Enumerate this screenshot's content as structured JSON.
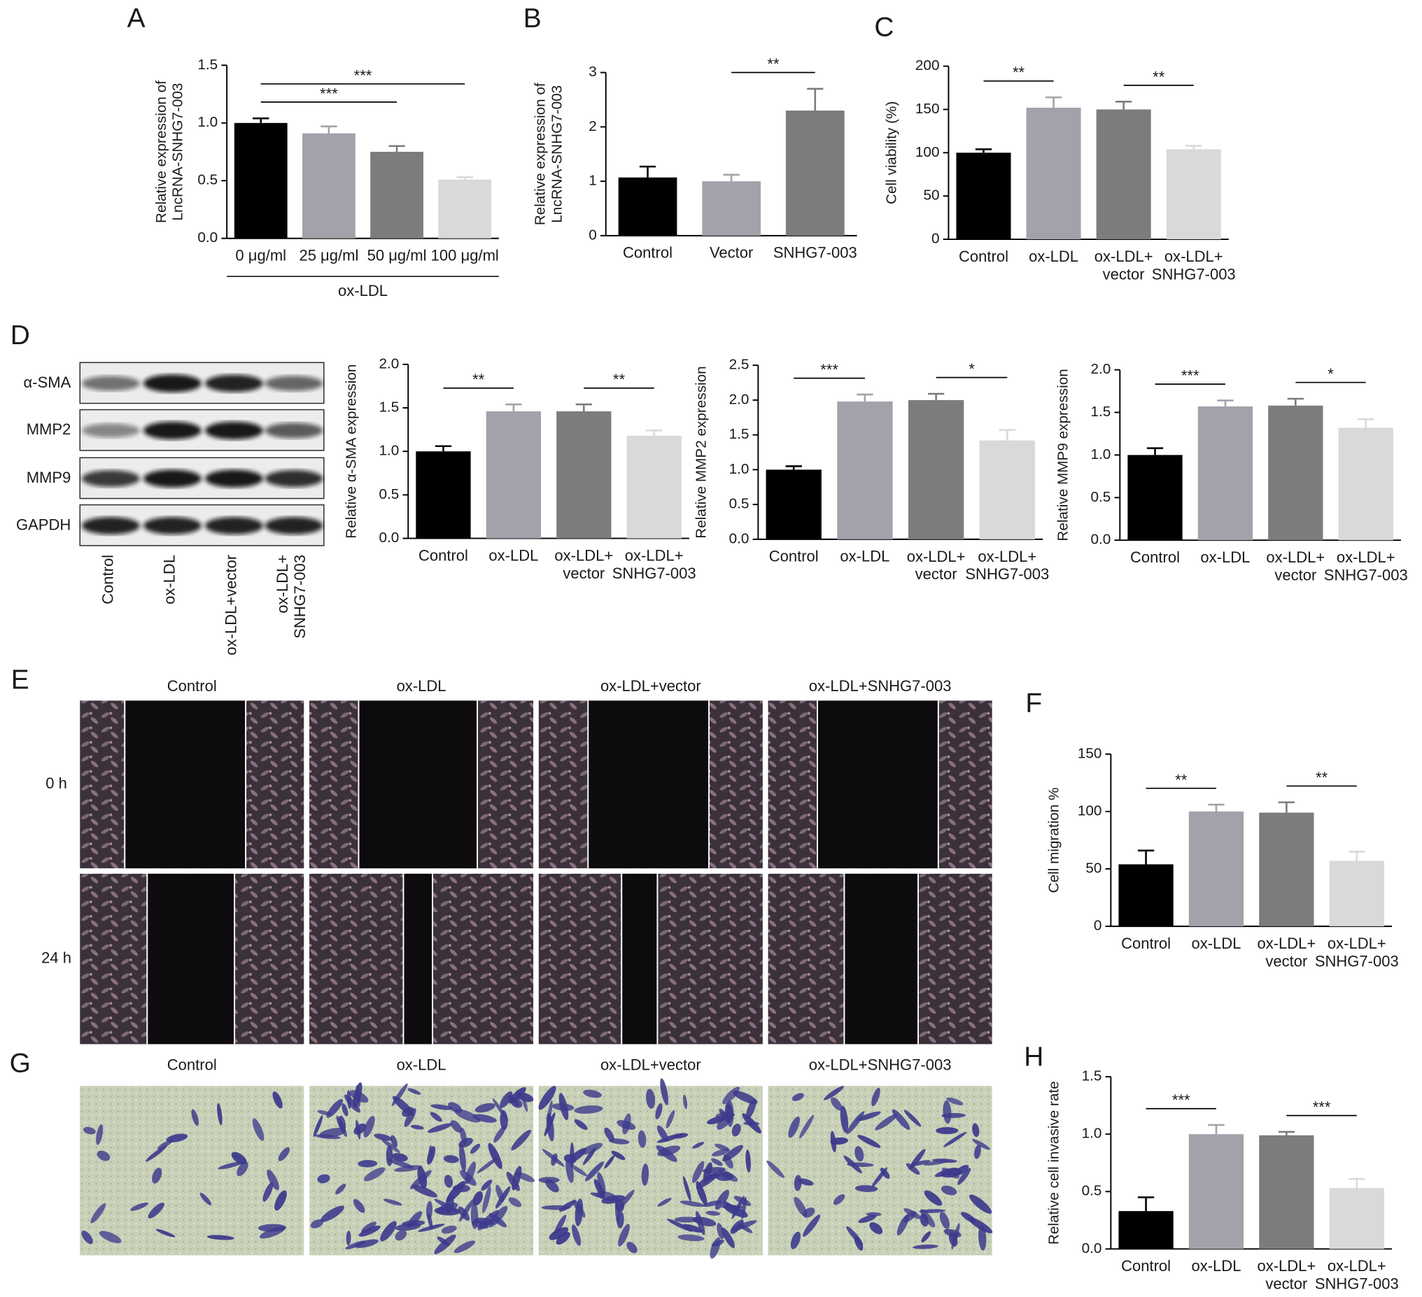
{
  "chart_data": [
    {
      "type": "bar",
      "panel": "A",
      "ylabel": "Relative expression of\nLncRNA-SNHG7-003",
      "categories": [
        "0 μg/ml",
        "25 μg/ml",
        "50 μg/ml",
        "100 μg/ml"
      ],
      "group_label": "ox-LDL",
      "values": [
        1.0,
        0.91,
        0.75,
        0.51
      ],
      "errors": [
        0.04,
        0.06,
        0.05,
        0.02
      ],
      "colors": [
        "#000000",
        "#a2a2ab",
        "#7c7c7c",
        "#d9d9d9"
      ],
      "ylim": [
        0,
        1.5
      ],
      "yticks": [
        {
          "value": 0,
          "label": "0.0"
        },
        {
          "value": 0.5,
          "label": "0.5"
        },
        {
          "value": 1,
          "label": "1.0"
        },
        {
          "value": 1.5,
          "label": "1.5"
        }
      ],
      "annotations": [
        {
          "text": "***",
          "between": [
            "0 μg/ml",
            "50 μg/ml"
          ]
        },
        {
          "text": "***",
          "between": [
            "0 μg/ml",
            "100 μg/ml"
          ]
        }
      ]
    },
    {
      "type": "bar",
      "panel": "B",
      "ylabel": "Relative expression of\nLncRNA-SNHG7-003",
      "categories": [
        "Control",
        "Vector",
        "SNHG7-003"
      ],
      "values": [
        1.07,
        1.0,
        2.3
      ],
      "errors": [
        0.2,
        0.12,
        0.4
      ],
      "colors": [
        "#000000",
        "#a2a2ab",
        "#7c7c7c"
      ],
      "ylim": [
        0,
        3
      ],
      "yticks": [
        0,
        1,
        2,
        3
      ],
      "annotations": [
        {
          "text": "**",
          "between": [
            "Vector",
            "SNHG7-003"
          ]
        }
      ]
    },
    {
      "type": "bar",
      "panel": "C",
      "ylabel": "Cell viability (%)",
      "categories": [
        "Control",
        "ox-LDL",
        "ox-LDL+\nvector",
        "ox-LDL+\nSNHG7-003"
      ],
      "values": [
        100,
        152,
        150,
        104
      ],
      "errors": [
        4,
        12,
        9,
        4
      ],
      "colors": [
        "#000000",
        "#a2a2ab",
        "#7c7c7c",
        "#d9d9d9"
      ],
      "ylim": [
        0,
        200
      ],
      "yticks": [
        0,
        50,
        100,
        150,
        200
      ],
      "annotations": [
        {
          "text": "**",
          "between": [
            "Control",
            "ox-LDL"
          ]
        },
        {
          "text": "**",
          "between": [
            "ox-LDL+\nvector",
            "ox-LDL+\nSNHG7-003"
          ]
        }
      ]
    },
    {
      "type": "bar",
      "ylabel": "Relative α-SMA expression",
      "categories": [
        "Control",
        "ox-LDL",
        "ox-LDL+\nvector",
        "ox-LDL+\nSNHG7-003"
      ],
      "values": [
        1.0,
        1.46,
        1.46,
        1.18
      ],
      "errors": [
        0.06,
        0.08,
        0.08,
        0.06
      ],
      "colors": [
        "#000000",
        "#a2a2ab",
        "#7c7c7c",
        "#d9d9d9"
      ],
      "ylim": [
        0,
        2
      ],
      "yticks": [
        {
          "value": 0,
          "label": "0.0"
        },
        {
          "value": 0.5,
          "label": "0.5"
        },
        {
          "value": 1,
          "label": "1.0"
        },
        {
          "value": 1.5,
          "label": "1.5"
        },
        {
          "value": 2,
          "label": "2.0"
        }
      ],
      "annotations": [
        {
          "text": "**",
          "between": [
            "Control",
            "ox-LDL"
          ]
        },
        {
          "text": "**",
          "between": [
            "ox-LDL+\nvector",
            "ox-LDL+\nSNHG7-003"
          ]
        }
      ]
    },
    {
      "type": "bar",
      "ylabel": "Relative MMP2 expression",
      "categories": [
        "Control",
        "ox-LDL",
        "ox-LDL+\nvector",
        "ox-LDL+\nSNHG7-003"
      ],
      "values": [
        1.0,
        1.98,
        2.0,
        1.42
      ],
      "errors": [
        0.05,
        0.1,
        0.09,
        0.15
      ],
      "colors": [
        "#000000",
        "#a2a2ab",
        "#7c7c7c",
        "#d9d9d9"
      ],
      "ylim": [
        0,
        2.5
      ],
      "yticks": [
        {
          "value": 0,
          "label": "0.0"
        },
        {
          "value": 0.5,
          "label": "0.5"
        },
        {
          "value": 1,
          "label": "1.0"
        },
        {
          "value": 1.5,
          "label": "1.5"
        },
        {
          "value": 2,
          "label": "2.0"
        },
        {
          "value": 2.5,
          "label": "2.5"
        }
      ],
      "annotations": [
        {
          "text": "***",
          "between": [
            "Control",
            "ox-LDL"
          ]
        },
        {
          "text": "*",
          "between": [
            "ox-LDL+\nvector",
            "ox-LDL+\nSNHG7-003"
          ]
        }
      ]
    },
    {
      "type": "bar",
      "ylabel": "Relative MMP9 expression",
      "categories": [
        "Control",
        "ox-LDL",
        "ox-LDL+\nvector",
        "ox-LDL+\nSNHG7-003"
      ],
      "values": [
        1.0,
        1.57,
        1.58,
        1.32
      ],
      "errors": [
        0.08,
        0.07,
        0.08,
        0.1
      ],
      "colors": [
        "#000000",
        "#a2a2ab",
        "#7c7c7c",
        "#d9d9d9"
      ],
      "ylim": [
        0,
        2
      ],
      "yticks": [
        {
          "value": 0,
          "label": "0.0"
        },
        {
          "value": 0.5,
          "label": "0.5"
        },
        {
          "value": 1,
          "label": "1.0"
        },
        {
          "value": 1.5,
          "label": "1.5"
        },
        {
          "value": 2,
          "label": "2.0"
        }
      ],
      "annotations": [
        {
          "text": "***",
          "between": [
            "Control",
            "ox-LDL"
          ]
        },
        {
          "text": "*",
          "between": [
            "ox-LDL+\nvector",
            "ox-LDL+\nSNHG7-003"
          ]
        }
      ]
    },
    {
      "type": "bar",
      "panel": "F",
      "ylabel": "Cell migration %",
      "categories": [
        "Control",
        "ox-LDL",
        "ox-LDL+\nvector",
        "ox-LDL+\nSNHG7-003"
      ],
      "values": [
        54,
        100,
        99,
        57
      ],
      "errors": [
        12,
        6,
        9,
        8
      ],
      "colors": [
        "#000000",
        "#a2a2ab",
        "#7c7c7c",
        "#d9d9d9"
      ],
      "ylim": [
        0,
        150
      ],
      "yticks": [
        0,
        50,
        100,
        150
      ],
      "annotations": [
        {
          "text": "**",
          "between": [
            "Control",
            "ox-LDL"
          ]
        },
        {
          "text": "**",
          "between": [
            "ox-LDL+\nvector",
            "ox-LDL+\nSNHG7-003"
          ]
        }
      ]
    },
    {
      "type": "bar",
      "panel": "H",
      "ylabel": "Relative cell invasive rate",
      "categories": [
        "Control",
        "ox-LDL",
        "ox-LDL+\nvector",
        "ox-LDL+\nSNHG7-003"
      ],
      "values": [
        0.33,
        1.0,
        0.99,
        0.53
      ],
      "errors": [
        0.12,
        0.08,
        0.03,
        0.08
      ],
      "colors": [
        "#000000",
        "#a2a2ab",
        "#7c7c7c",
        "#d9d9d9"
      ],
      "ylim": [
        0,
        1.5
      ],
      "yticks": [
        {
          "value": 0,
          "label": "0.0"
        },
        {
          "value": 0.5,
          "label": "0.5"
        },
        {
          "value": 1,
          "label": "1.0"
        },
        {
          "value": 1.5,
          "label": "1.5"
        }
      ],
      "annotations": [
        {
          "text": "***",
          "between": [
            "Control",
            "ox-LDL"
          ]
        },
        {
          "text": "***",
          "between": [
            "ox-LDL+\nvector",
            "ox-LDL+\nSNHG7-003"
          ]
        }
      ]
    }
  ],
  "western_blot": {
    "panel": "D",
    "proteins": [
      "α-SMA",
      "MMP2",
      "MMP9",
      "GAPDH"
    ],
    "lanes": [
      "Control",
      "ox-LDL",
      "ox-LDL+vector",
      "ox-LDL+\nSNHG7-003"
    ]
  },
  "wound_healing": {
    "panel": "E",
    "columns": [
      "Control",
      "ox-LDL",
      "ox-LDL+vector",
      "ox-LDL+SNHG7-003"
    ],
    "rows": [
      "0 h",
      "24 h"
    ]
  },
  "invasion": {
    "panel": "G",
    "columns": [
      "Control",
      "ox-LDL",
      "ox-LDL+vector",
      "ox-LDL+SNHG7-003"
    ]
  }
}
